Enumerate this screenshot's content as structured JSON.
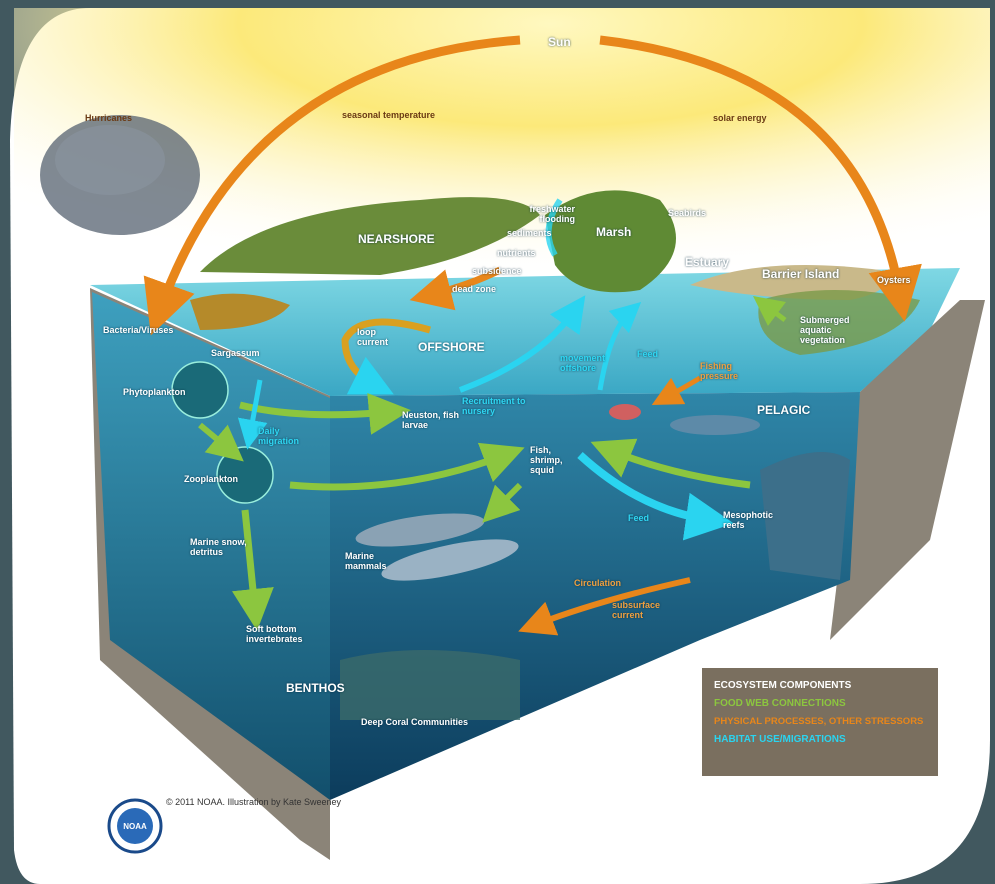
{
  "labels": [
    "Sun",
    "Hurricanes",
    "seasonal temperature",
    "solar energy",
    "NEARSHORE",
    "freshwater flooding",
    "sediments",
    "nutrients",
    "subsidence",
    "dead zone",
    "Marsh",
    "Seabirds",
    "Estuary",
    "Barrier Island",
    "Oysters",
    "Submerged aquatic vegetation",
    "Bacteria/Viruses",
    "Sargassum",
    "loop current",
    "OFFSHORE",
    "Phytoplankton",
    "movement offshore",
    "Feed",
    "Fishing pressure",
    "Recruitment to nursery",
    "Neuston, fish larvae",
    "Daily migration",
    "PELAGIC",
    "Fish, shrimp, squid",
    "Zooplankton",
    "Feed",
    "Mesophotic reefs",
    "Marine snow, detritus",
    "Marine mammals",
    "Circulation",
    "subsurface current",
    "Soft bottom invertebrates",
    "BENTHOS",
    "Deep Coral Communities"
  ],
  "legend": {
    "title": "ECOSYSTEM COMPONENTS",
    "items": [
      "FOOD WEB CONNECTIONS",
      "PHYSICAL PROCESSES, OTHER STRESSORS",
      "HABITAT USE/MIGRATIONS"
    ]
  },
  "logo": "NOAA",
  "credit": "© 2011 NOAA.  Illustration by Kate Sweeney"
}
